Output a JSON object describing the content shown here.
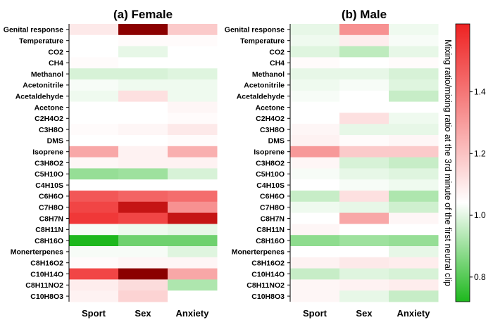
{
  "chart_data": {
    "type": "heatmap",
    "rows": [
      "Genital response",
      "Temperature",
      "CO2",
      "CH4",
      "Methanol",
      "Acetonitrile",
      "Acetaldehyde",
      "Acetone",
      "C2H4O2",
      "C3H8O",
      "DMS",
      "Isoprene",
      "C3H8O2",
      "C5H10O",
      "C4H10S",
      "C6H6O",
      "C7H8O",
      "C8H7N",
      "C8H11N",
      "C8H16O",
      "Monerterpenes",
      "C8H16O2",
      "C10H14O",
      "C8H11NO2",
      "C10H8O3"
    ],
    "columns": [
      "Sport",
      "Sex",
      "Anxiety"
    ],
    "panels": [
      {
        "title": "(a) Female",
        "values": [
          [
            1.05,
            1.7,
            1.12
          ],
          [
            1.0,
            1.01,
            1.01
          ],
          [
            1.0,
            0.97,
            1.0
          ],
          [
            1.01,
            1.0,
            1.0
          ],
          [
            0.95,
            0.95,
            0.96
          ],
          [
            0.99,
            0.98,
            0.98
          ],
          [
            0.98,
            1.07,
            0.98
          ],
          [
            1.0,
            1.0,
            1.02
          ],
          [
            1.0,
            1.0,
            1.01
          ],
          [
            1.01,
            1.02,
            1.05
          ],
          [
            1.0,
            1.0,
            1.01
          ],
          [
            1.2,
            1.03,
            1.18
          ],
          [
            1.02,
            1.03,
            1.03
          ],
          [
            0.87,
            0.88,
            0.95
          ],
          [
            1.0,
            1.0,
            1.0
          ],
          [
            1.38,
            1.35,
            1.33
          ],
          [
            1.42,
            1.55,
            1.25
          ],
          [
            1.45,
            1.42,
            1.55
          ],
          [
            0.99,
            0.98,
            0.97
          ],
          [
            0.72,
            0.82,
            0.82
          ],
          [
            0.99,
            0.99,
            0.96
          ],
          [
            1.01,
            1.02,
            1.02
          ],
          [
            1.42,
            1.68,
            1.2
          ],
          [
            1.04,
            1.08,
            0.9
          ],
          [
            1.03,
            1.1,
            1.0
          ]
        ]
      },
      {
        "title": "(b) Male",
        "values": [
          [
            0.97,
            1.25,
            0.98
          ],
          [
            0.98,
            1.04,
            0.99
          ],
          [
            0.96,
            0.92,
            0.97
          ],
          [
            1.01,
            1.0,
            1.01
          ],
          [
            0.97,
            0.97,
            0.95
          ],
          [
            0.98,
            0.99,
            0.96
          ],
          [
            0.99,
            1.0,
            0.93
          ],
          [
            1.0,
            1.0,
            1.0
          ],
          [
            1.0,
            1.07,
            0.98
          ],
          [
            1.02,
            0.97,
            0.97
          ],
          [
            1.03,
            1.01,
            1.02
          ],
          [
            1.23,
            1.12,
            1.12
          ],
          [
            1.02,
            0.95,
            0.93
          ],
          [
            0.99,
            0.97,
            0.96
          ],
          [
            1.0,
            0.99,
            0.98
          ],
          [
            0.93,
            1.07,
            0.9
          ],
          [
            0.98,
            0.97,
            0.94
          ],
          [
            1.0,
            1.2,
            1.02
          ],
          [
            1.02,
            1.0,
            1.0
          ],
          [
            0.86,
            0.88,
            0.87
          ],
          [
            1.0,
            1.0,
            0.97
          ],
          [
            1.03,
            1.05,
            1.04
          ],
          [
            0.93,
            0.96,
            0.95
          ],
          [
            1.02,
            1.03,
            1.04
          ],
          [
            1.02,
            0.97,
            0.93
          ]
        ]
      }
    ],
    "colorbar": {
      "label": "Mixing ratio/mixing ratio at the 3rd minute of the first neutral clip",
      "ticks": [
        0.8,
        1.0,
        1.2,
        1.4
      ],
      "range": [
        0.72,
        1.62
      ],
      "colors": {
        "low": "#1db81d",
        "mid": "#ffffff",
        "high": "#ee2222",
        "extreme": "#8b0000"
      }
    }
  }
}
